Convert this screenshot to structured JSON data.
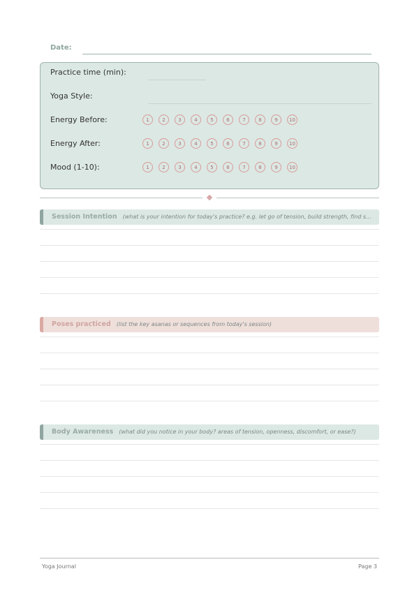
{
  "date_label": "Date:",
  "fields": [
    "Practice time (min):",
    "Yoga Style:",
    "Energy Before:",
    "Energy After:",
    "Mood (1-10):"
  ],
  "scale": [
    1,
    2,
    3,
    4,
    5,
    6,
    7,
    8,
    9,
    10
  ],
  "sections": [
    {
      "title": "Session Intention",
      "hint": "(what is your intention for today's practice? e.g. let go of tension, build strength, find s…"
    },
    {
      "title": "Poses practiced",
      "hint": "(list the key asanas or sequences from today's session)"
    },
    {
      "title": "Body Awareness",
      "hint": "(what did you notice in your body? areas of tension, openness, discomfort, or ease?)"
    }
  ],
  "footer": {
    "left": "Yoga Journal",
    "right": "Page 3"
  }
}
